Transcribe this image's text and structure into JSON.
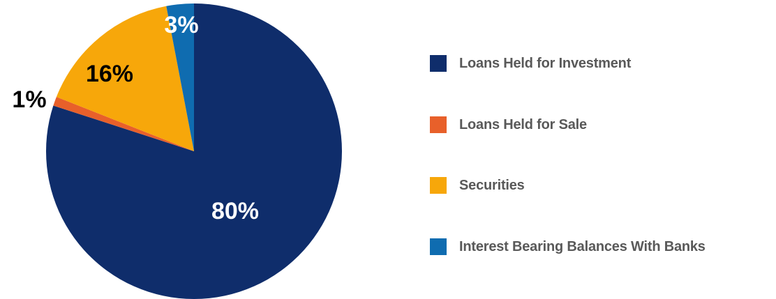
{
  "chart_data": {
    "type": "pie",
    "title": "",
    "start_angle_deg": 0,
    "direction": "clockwise",
    "slices": [
      {
        "name": "Loans Held for Investment",
        "value": 80,
        "label": "80%",
        "color": "#0f2d6b",
        "label_color": "#ffffff"
      },
      {
        "name": "Loans Held for Sale",
        "value": 1,
        "label": "1%",
        "color": "#e8602a",
        "label_color": "#000000"
      },
      {
        "name": "Securities",
        "value": 16,
        "label": "16%",
        "color": "#f7a70a",
        "label_color": "#000000"
      },
      {
        "name": "Interest Bearing Balances With Banks",
        "value": 3,
        "label": "3%",
        "color": "#0f6cb0",
        "label_color": "#ffffff"
      }
    ],
    "legend_position": "right"
  }
}
